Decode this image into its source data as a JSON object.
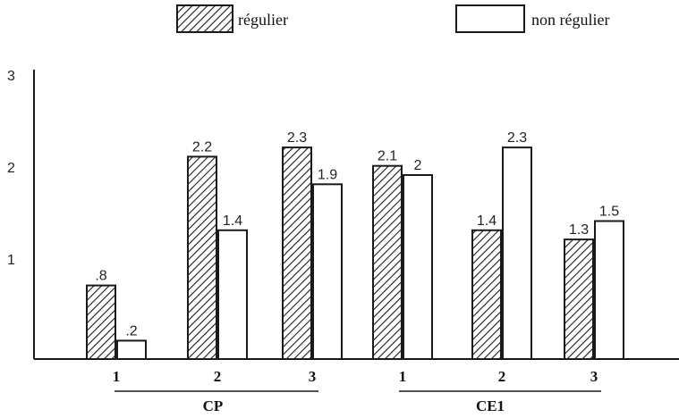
{
  "chart_data": {
    "type": "bar",
    "title": "",
    "xlabel": "",
    "ylabel": "",
    "ylim": [
      0,
      3
    ],
    "yticks": [
      "1",
      "2",
      "3"
    ],
    "grid": false,
    "legend_position": "top",
    "groups": [
      "CP",
      "CE1"
    ],
    "categories": [
      "1",
      "2",
      "3",
      "1",
      "2",
      "3"
    ],
    "series": [
      {
        "name": "régulier",
        "pattern": "hatched",
        "values": [
          0.8,
          2.2,
          2.3,
          2.1,
          1.4,
          1.3
        ],
        "labels": [
          ".8",
          "2.2",
          "2.3",
          "2.1",
          "1.4",
          "1.3"
        ]
      },
      {
        "name": "non régulier",
        "pattern": "white",
        "values": [
          0.2,
          1.4,
          1.9,
          2.0,
          2.3,
          1.5
        ],
        "labels": [
          ".2",
          "1.4",
          "1.9",
          "2",
          "2.3",
          "1.5"
        ]
      }
    ],
    "colors": {
      "stroke": "#1a1a1a",
      "fill_white": "#ffffff"
    }
  }
}
